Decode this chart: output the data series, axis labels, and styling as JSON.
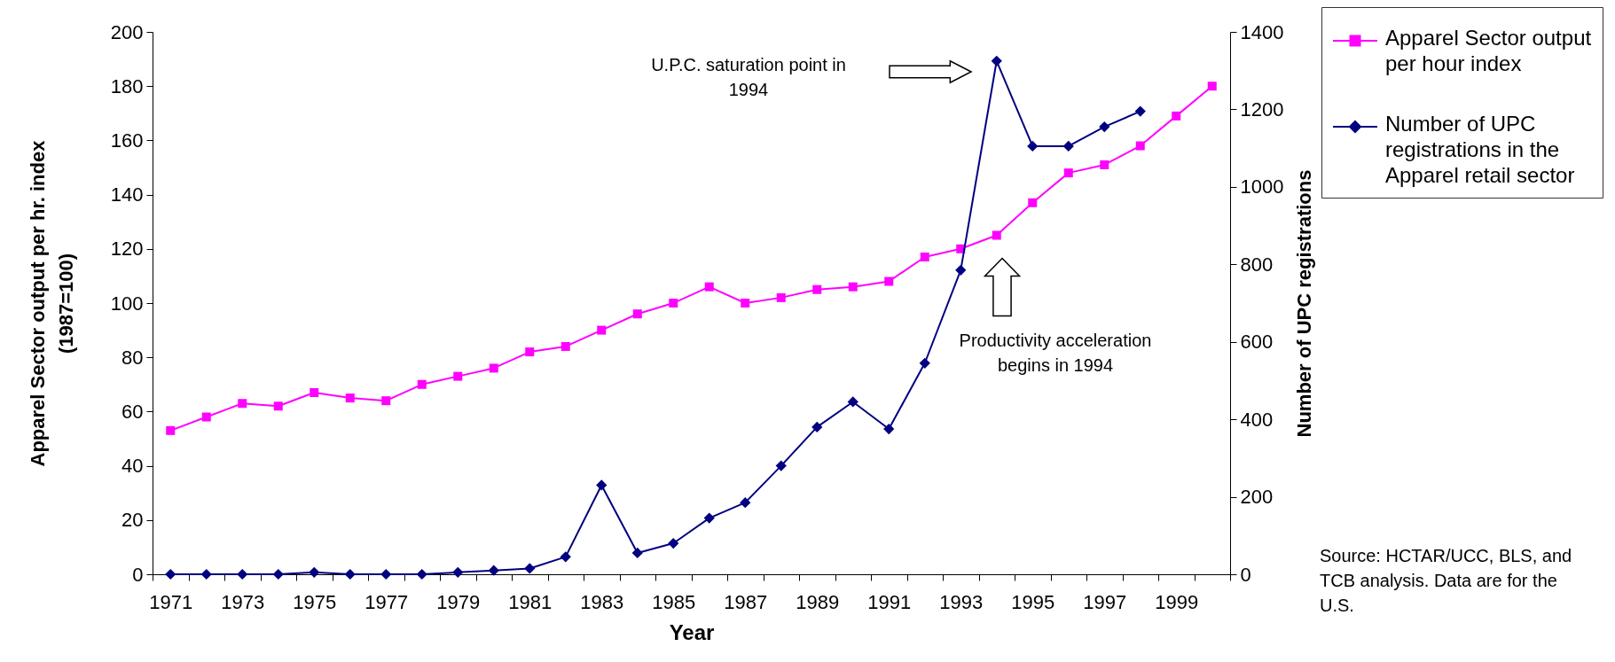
{
  "chart_data": {
    "type": "line",
    "xlabel": "Year",
    "ylabel": "Apparel Sector output per hr. index (1987=100)",
    "y2label": "Number of UPC registrations",
    "categories": [
      "1971",
      null,
      "1973",
      null,
      "1975",
      null,
      "1977",
      null,
      "1979",
      null,
      "1981",
      null,
      "1983",
      null,
      "1985",
      null,
      "1987",
      null,
      "1989",
      null,
      "1991",
      null,
      "1993",
      null,
      "1995",
      null,
      "1997",
      null,
      "1999",
      null
    ],
    "series": [
      {
        "name": "Apparel Sector output per hour index",
        "color": "#ff00ff",
        "marker": "square",
        "values": [
          53,
          58,
          63,
          62,
          67,
          65,
          64,
          70,
          73,
          76,
          82,
          84,
          90,
          96,
          100,
          106,
          100,
          102,
          105,
          106,
          108,
          117,
          120,
          125,
          137,
          148,
          151,
          158,
          169,
          180
        ]
      },
      {
        "name": "Number of UPC registrations in the Apparel retail sector",
        "color": "#000080",
        "marker": "diamond",
        "axis": "y2",
        "values": [
          0,
          0,
          0,
          0,
          5,
          0,
          0,
          0,
          5,
          10,
          15,
          45,
          230,
          55,
          80,
          145,
          185,
          280,
          380,
          445,
          375,
          545,
          785,
          1325,
          1105,
          1105,
          1155,
          1195,
          null,
          null
        ]
      }
    ],
    "ylim": [
      0,
      200
    ],
    "yticks": [
      0,
      20,
      40,
      60,
      80,
      100,
      120,
      140,
      160,
      180,
      200
    ],
    "y2lim": [
      0,
      1400
    ],
    "y2ticks": [
      0,
      200,
      400,
      600,
      800,
      1000,
      1200,
      1400
    ],
    "legend": "top right",
    "annotations": [
      "U.P.C. saturation point in 1994",
      "Productivity acceleration begins in 1994",
      "Source: HCTAR/UCC, BLS, and TCB analysis. Data are for the U.S."
    ]
  }
}
